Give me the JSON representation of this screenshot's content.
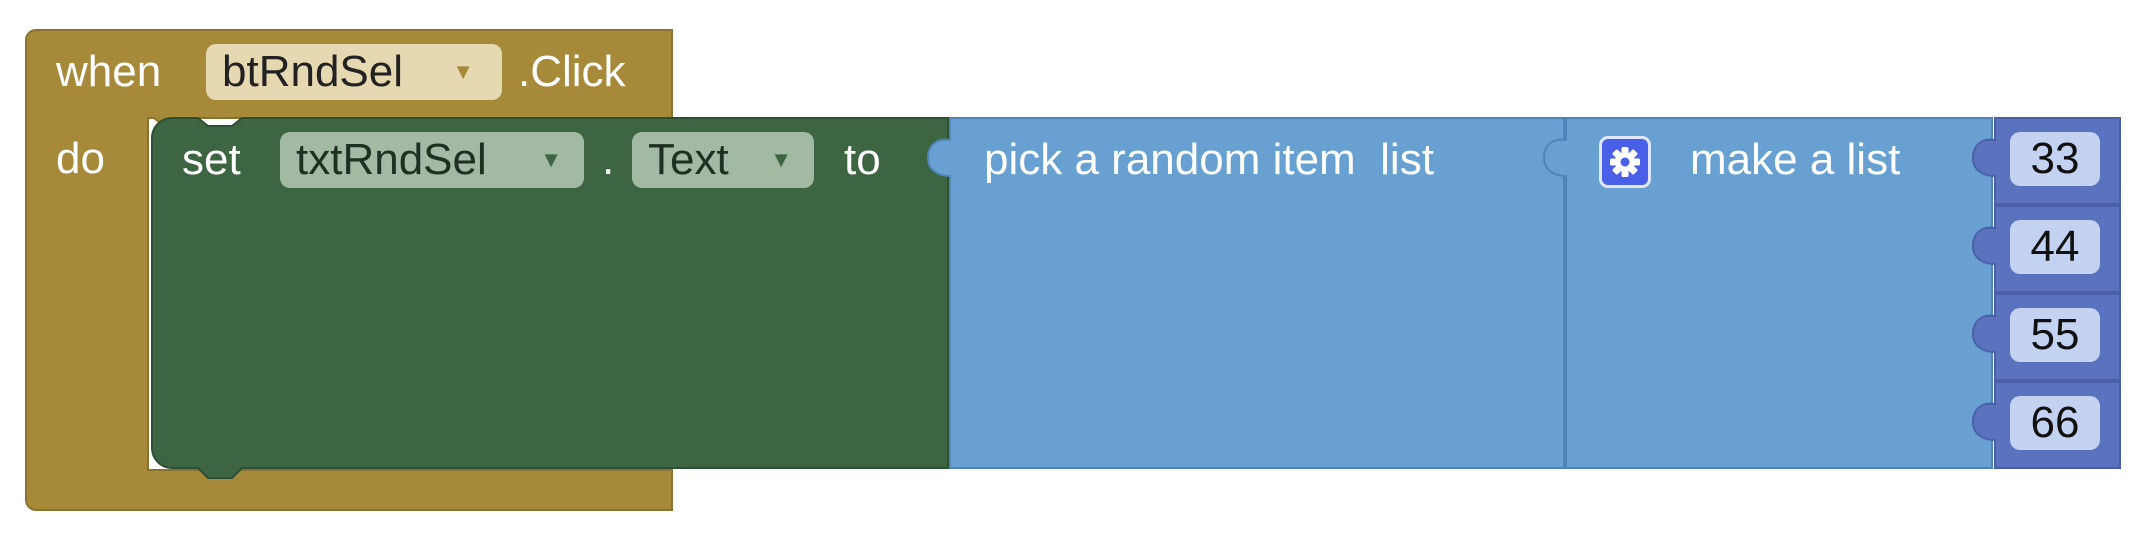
{
  "event_block": {
    "when_label": "when",
    "component": "btRndSel",
    "event_name": ".Click",
    "do_label": "do"
  },
  "set_block": {
    "set_label": "set",
    "component": "txtRndSel",
    "dot": ".",
    "property": "Text",
    "to_label": "to"
  },
  "random_block": {
    "label": "pick a random item  list"
  },
  "make_list_block": {
    "label": "make a list",
    "mutator_icon": "gear-icon",
    "items": [
      "33",
      "44",
      "55",
      "66"
    ]
  },
  "dropdown_arrow": "▼",
  "colors": {
    "control_event": "#a68a3a",
    "set_block": "#3d6542",
    "list_block": "#67a0d1",
    "number_block": "#5b73bf"
  }
}
